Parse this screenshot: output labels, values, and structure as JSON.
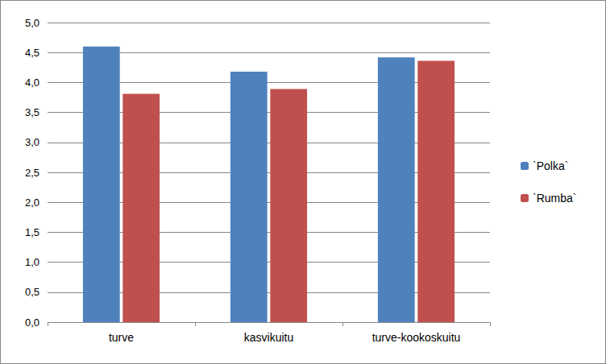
{
  "chart_data": {
    "type": "bar",
    "categories": [
      "turve",
      "kasvikuitu",
      "turve-kookoskuitu"
    ],
    "series": [
      {
        "name": "`Polka`",
        "color": "#4f81bd",
        "values": [
          4.6,
          4.18,
          4.42
        ]
      },
      {
        "name": "`Rumba`",
        "color": "#c0504d",
        "values": [
          3.81,
          3.89,
          4.36
        ]
      }
    ],
    "ylim": [
      0,
      5
    ],
    "yticks": [
      {
        "value": 0,
        "label": "0,0"
      },
      {
        "value": 0.5,
        "label": "0,5"
      },
      {
        "value": 1,
        "label": "1,0"
      },
      {
        "value": 1.5,
        "label": "1,5"
      },
      {
        "value": 2,
        "label": "2,0"
      },
      {
        "value": 2.5,
        "label": "2,5"
      },
      {
        "value": 3,
        "label": "3,0"
      },
      {
        "value": 3.5,
        "label": "3,5"
      },
      {
        "value": 4,
        "label": "4,0"
      },
      {
        "value": 4.5,
        "label": "4,5"
      },
      {
        "value": 5,
        "label": "5,0"
      }
    ],
    "grid": true,
    "legend": "right"
  }
}
